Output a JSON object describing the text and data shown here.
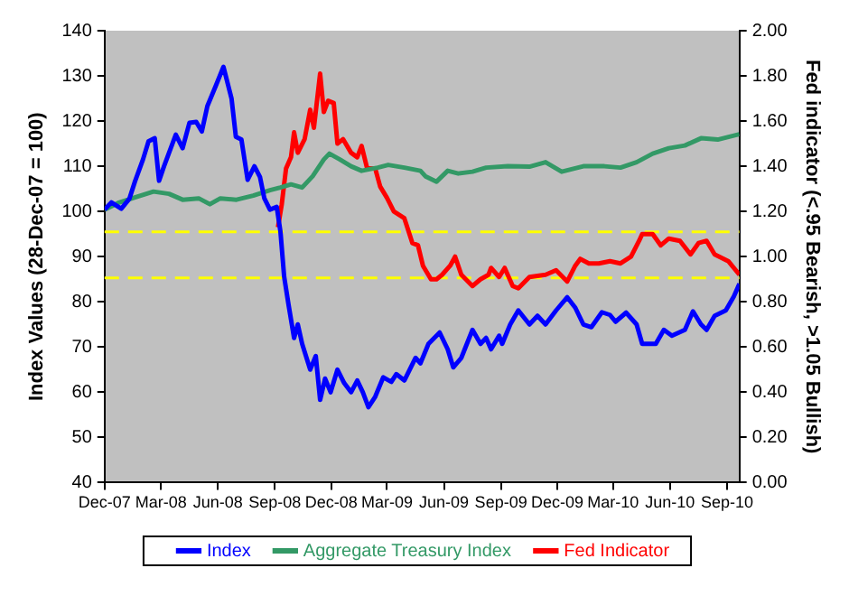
{
  "chart_data": {
    "type": "line",
    "ylabel": "Index Values (28-Dec-07 = 100)",
    "y2label": "Fed indicator (<.95 Bearish, >1.05 Bullish)",
    "xlim": [
      "2007-12-28",
      "2010-10-18"
    ],
    "xticks": [
      {
        "value": "2007-12-28",
        "label": "Dec-07"
      },
      {
        "value": "2008-03-28",
        "label": "Mar-08"
      },
      {
        "value": "2008-06-28",
        "label": "Jun-08"
      },
      {
        "value": "2008-09-28",
        "label": "Sep-08"
      },
      {
        "value": "2008-12-28",
        "label": "Dec-08"
      },
      {
        "value": "2009-03-28",
        "label": "Mar-09"
      },
      {
        "value": "2009-06-28",
        "label": "Jun-09"
      },
      {
        "value": "2009-09-28",
        "label": "Sep-09"
      },
      {
        "value": "2009-12-28",
        "label": "Dec-09"
      },
      {
        "value": "2010-03-28",
        "label": "Mar-10"
      },
      {
        "value": "2010-06-28",
        "label": "Jun-10"
      },
      {
        "value": "2010-09-28",
        "label": "Sep-10"
      }
    ],
    "ylim": [
      40,
      140
    ],
    "yticks": [
      40,
      50,
      60,
      70,
      80,
      90,
      100,
      110,
      120,
      130,
      140
    ],
    "y2lim": [
      0,
      2
    ],
    "y2ticks": [
      {
        "value": 0,
        "label": "0.00"
      },
      {
        "value": 0.2,
        "label": "0.20"
      },
      {
        "value": 0.4,
        "label": "0.40"
      },
      {
        "value": 0.6,
        "label": "0.60"
      },
      {
        "value": 0.8,
        "label": "0.80"
      },
      {
        "value": 1,
        "label": "1.00"
      },
      {
        "value": 1.2,
        "label": "1.20"
      },
      {
        "value": 1.4,
        "label": "1.40"
      },
      {
        "value": 1.6,
        "label": "1.60"
      },
      {
        "value": 1.8,
        "label": "1.80"
      },
      {
        "value": 2,
        "label": "2.00"
      }
    ],
    "legend": "bottom",
    "marker": "none",
    "line_style": "solid",
    "ref_lines": [
      {
        "axis": "y",
        "value": 95.5,
        "color": "#ffff00",
        "line_style": "dashed"
      },
      {
        "axis": "y",
        "value": 85.3,
        "color": "#ffff00",
        "line_style": "dashed"
      }
    ],
    "series": [
      {
        "name": "Index",
        "color": "#0000ff",
        "x": [
          "2007-12-28",
          "2008-01-08",
          "2008-01-24",
          "2008-02-06",
          "2008-02-15",
          "2008-02-28",
          "2008-03-08",
          "2008-03-18",
          "2008-03-25",
          "2008-04-02",
          "2008-04-21",
          "2008-05-02",
          "2008-05-13",
          "2008-05-24",
          "2008-06-02",
          "2008-06-11",
          "2008-06-24",
          "2008-07-07",
          "2008-07-20",
          "2008-07-27",
          "2008-08-05",
          "2008-08-15",
          "2008-08-26",
          "2008-09-04",
          "2008-09-11",
          "2008-09-20",
          "2008-10-01",
          "2008-10-07",
          "2008-10-13",
          "2008-10-20",
          "2008-10-29",
          "2008-11-04",
          "2008-11-11",
          "2008-11-24",
          "2008-12-03",
          "2008-12-10",
          "2008-12-18",
          "2008-12-27",
          "2009-01-07",
          "2009-01-18",
          "2009-01-29",
          "2009-02-08",
          "2009-02-17",
          "2009-02-26",
          "2009-03-09",
          "2009-03-22",
          "2009-04-04",
          "2009-04-12",
          "2009-04-25",
          "2009-05-13",
          "2009-05-21",
          "2009-06-03",
          "2009-06-21",
          "2009-07-04",
          "2009-07-13",
          "2009-07-26",
          "2009-08-13",
          "2009-08-26",
          "2009-09-04",
          "2009-09-12",
          "2009-09-25",
          "2009-09-30",
          "2009-10-13",
          "2009-10-26",
          "2009-11-13",
          "2009-11-26",
          "2009-12-09",
          "2009-12-26",
          "2010-01-13",
          "2010-01-26",
          "2010-02-08",
          "2010-02-21",
          "2010-03-10",
          "2010-03-23",
          "2010-04-01",
          "2010-04-18",
          "2010-05-05",
          "2010-05-14",
          "2010-06-05",
          "2010-06-18",
          "2010-07-01",
          "2010-07-22",
          "2010-08-04",
          "2010-08-17",
          "2010-08-26",
          "2010-09-08",
          "2010-09-26",
          "2010-10-09",
          "2010-10-18"
        ],
        "values": [
          100.4,
          102,
          100.6,
          102.8,
          106.6,
          111.5,
          115.5,
          116.2,
          106.8,
          110,
          117,
          114,
          119.6,
          119.8,
          117.7,
          123.3,
          127.6,
          132,
          125,
          116.5,
          115.9,
          107,
          110,
          107.6,
          102.9,
          100.4,
          101,
          95.5,
          85.5,
          79.4,
          72,
          75,
          70.7,
          65,
          68,
          58.3,
          63,
          60,
          65,
          62,
          60,
          62.6,
          60,
          56.7,
          59,
          63.3,
          62.3,
          64,
          62.6,
          67.6,
          66.4,
          70.7,
          73.2,
          69.5,
          65.5,
          67.6,
          73.8,
          70.7,
          72,
          69.5,
          72.5,
          70.7,
          75,
          78.1,
          75,
          76.9,
          75,
          78.1,
          81,
          78.7,
          75,
          74.4,
          77.7,
          77.1,
          75.6,
          77.6,
          75,
          70.7,
          70.7,
          73.8,
          72.5,
          73.8,
          77.9,
          75,
          73.8,
          76.9,
          78.1,
          81.2,
          84
        ]
      },
      {
        "name": "Aggregate Treasury Index",
        "color": "#339966",
        "x": [
          "2007-12-28",
          "2008-01-19",
          "2008-02-15",
          "2008-03-16",
          "2008-04-10",
          "2008-05-02",
          "2008-05-28",
          "2008-06-15",
          "2008-07-02",
          "2008-07-28",
          "2008-08-24",
          "2008-09-20",
          "2008-10-07",
          "2008-10-24",
          "2008-11-11",
          "2008-11-28",
          "2008-12-16",
          "2008-12-25",
          "2009-01-11",
          "2009-01-29",
          "2009-02-15",
          "2009-03-13",
          "2009-03-30",
          "2009-04-25",
          "2009-05-21",
          "2009-05-29",
          "2009-06-16",
          "2009-07-04",
          "2009-07-21",
          "2009-08-13",
          "2009-09-04",
          "2009-10-09",
          "2009-11-13",
          "2009-12-09",
          "2010-01-04",
          "2010-02-08",
          "2010-03-14",
          "2010-04-09",
          "2010-05-05",
          "2010-05-31",
          "2010-06-26",
          "2010-07-22",
          "2010-08-17",
          "2010-09-13",
          "2010-10-18"
        ],
        "values": [
          100.4,
          101.9,
          103.1,
          104.4,
          103.9,
          102.6,
          102.9,
          101.6,
          102.9,
          102.6,
          103.5,
          104.7,
          105.3,
          106,
          105.3,
          107.8,
          111.5,
          112.8,
          111.5,
          110,
          109,
          109.7,
          110.3,
          109.7,
          109,
          107.8,
          106.6,
          109,
          108.4,
          108.8,
          109.7,
          110,
          109.9,
          110.9,
          108.8,
          110,
          110,
          109.7,
          110.9,
          112.8,
          114,
          114.6,
          116.2,
          115.9,
          117.1
        ]
      },
      {
        "name": "Fed Indicator",
        "color": "#ff0000",
        "axis": "y2",
        "x": [
          "2008-10-03",
          "2008-10-09",
          "2008-10-16",
          "2008-10-24",
          "2008-10-29",
          "2008-11-04",
          "2008-11-15",
          "2008-11-24",
          "2008-11-30",
          "2008-12-10",
          "2008-12-16",
          "2008-12-23",
          "2009-01-01",
          "2009-01-07",
          "2009-01-16",
          "2009-01-29",
          "2009-02-08",
          "2009-02-15",
          "2009-02-24",
          "2009-03-09",
          "2009-03-17",
          "2009-03-28",
          "2009-04-08",
          "2009-04-25",
          "2009-05-08",
          "2009-05-17",
          "2009-05-25",
          "2009-06-07",
          "2009-06-16",
          "2009-06-25",
          "2009-07-08",
          "2009-07-16",
          "2009-07-26",
          "2009-08-13",
          "2009-08-26",
          "2009-09-08",
          "2009-09-12",
          "2009-09-25",
          "2009-10-04",
          "2009-10-17",
          "2009-10-26",
          "2009-11-13",
          "2009-12-09",
          "2009-12-26",
          "2010-01-13",
          "2010-01-26",
          "2010-02-03",
          "2010-02-17",
          "2010-03-05",
          "2010-03-23",
          "2010-04-09",
          "2010-04-26",
          "2010-05-09",
          "2010-05-14",
          "2010-05-31",
          "2010-06-13",
          "2010-06-26",
          "2010-07-14",
          "2010-07-31",
          "2010-08-13",
          "2010-08-26",
          "2010-09-08",
          "2010-09-30",
          "2010-10-18"
        ],
        "values": [
          1.13,
          1.23,
          1.39,
          1.44,
          1.55,
          1.46,
          1.52,
          1.65,
          1.57,
          1.81,
          1.64,
          1.69,
          1.68,
          1.5,
          1.52,
          1.46,
          1.44,
          1.49,
          1.39,
          1.39,
          1.31,
          1.26,
          1.2,
          1.17,
          1.06,
          1.05,
          0.96,
          0.9,
          0.9,
          0.92,
          0.96,
          1.0,
          0.92,
          0.87,
          0.9,
          0.92,
          0.95,
          0.91,
          0.95,
          0.87,
          0.86,
          0.91,
          0.92,
          0.94,
          0.89,
          0.96,
          0.99,
          0.97,
          0.97,
          0.98,
          0.97,
          1.0,
          1.07,
          1.1,
          1.1,
          1.05,
          1.08,
          1.07,
          1.01,
          1.06,
          1.07,
          1.01,
          0.98,
          0.92
        ]
      }
    ]
  }
}
